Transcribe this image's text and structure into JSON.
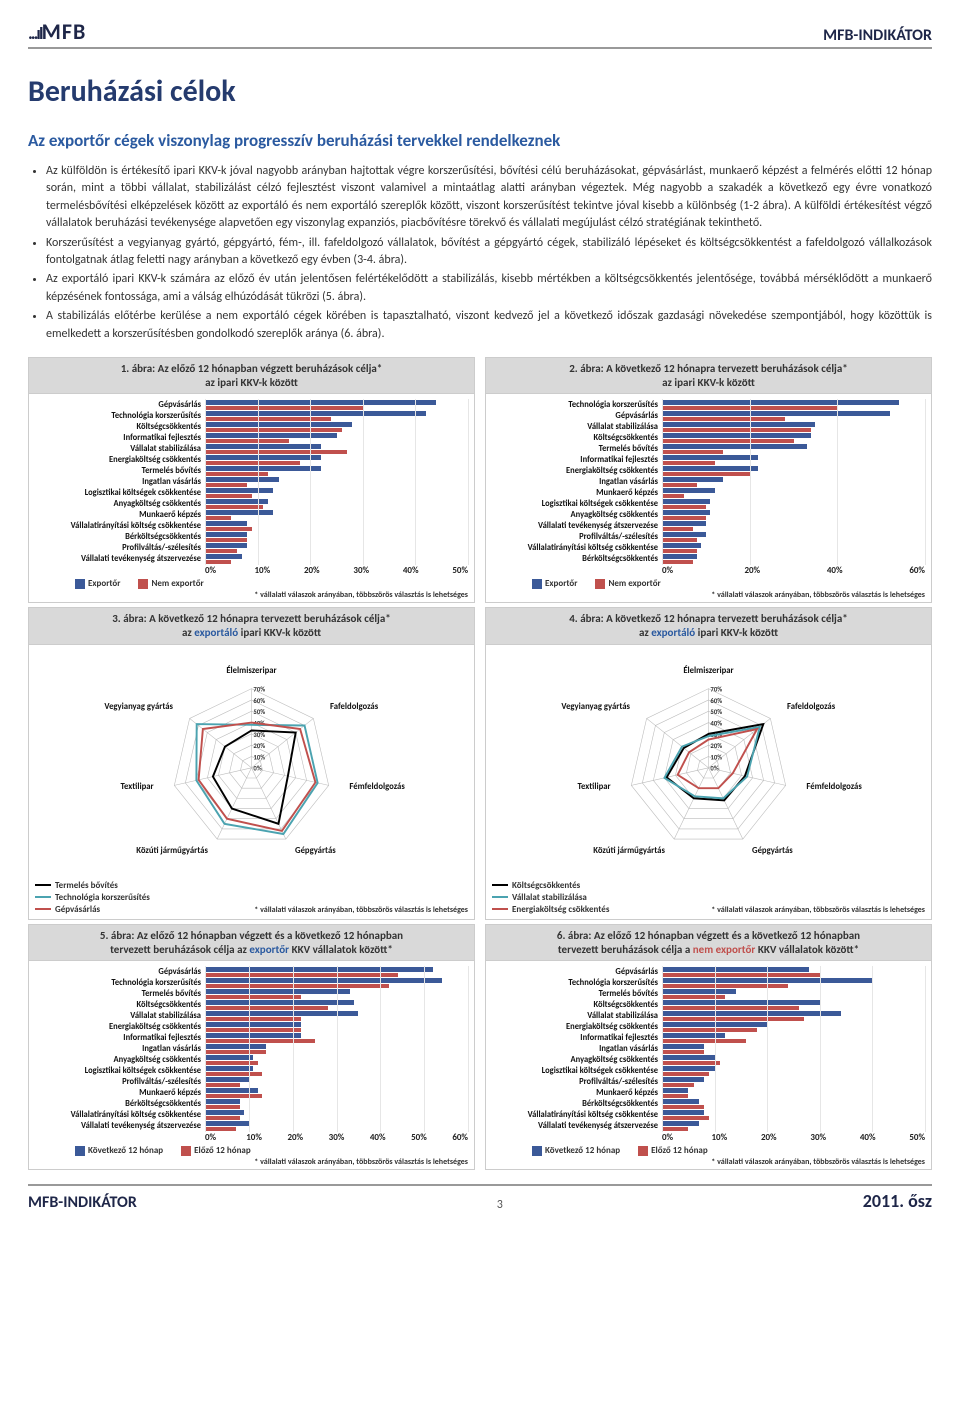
{
  "header": {
    "logo_prefix": "...ıI",
    "logo_text": "MFB",
    "right": "MFB-INDIKÁTOR"
  },
  "title": "Beruházási célok",
  "subtitle": "Az exportőr cégek viszonylag progresszív beruházási tervekkel rendelkeznek",
  "bullets": [
    "Az külföldön is értékesítő ipari KKV-k jóval nagyobb arányban hajtottak végre korszerűsítési, bővítési célú beruházásokat, gépvásárlást, munkaerő képzést a felmérés előtti 12 hónap során, mint a többi vállalat, stabilizálást célzó fejlesztést viszont valamivel a mintaátlag alatti arányban végeztek. Még nagyobb a szakadék a következő egy évre vonatkozó termelésbővítési elképzelések között az exportáló és nem exportáló szereplők között, viszont korszerűsítést tekintve jóval kisebb a különbség (1-2 ábra). A külföldi értékesítést végző vállalatok beruházási tevékenysége alapvetően egy viszonylag expanziós, piacbővítésre törekvő és vállalati megújulást célzó stratégiának tekinthető.",
    "Korszerűsítést a vegyianyag gyártó, gépgyártó, fém-, ill. fafeldolgozó vállalatok, bővítést a gépgyártó cégek, stabilizáló lépéseket és költségcsökkentést a fafeldolgozó vállalkozások fontolgatnak átlag feletti nagy arányban a következő egy évben (3-4. ábra).",
    "Az exportáló ipari KKV-k számára az előző év után jelentősen felértékelődött a stabilizálás, kisebb mértékben a költségcsökkentés jelentősége, továbbá mérséklődött a munkaerő képzésének fontossága, ami a válság elhúzódását tükrözi (5. ábra).",
    "A stabilizálás előtérbe kerülése a nem exportáló cégek körében is tapasztalható, viszont kedvező jel a következő időszak gazdasági növekedése szempontjából, hogy közöttük is emelkedett a korszerűsítésben gondolkodó szereplők aránya (6. ábra)."
  ],
  "legend_labels": {
    "exporter": "Exportőr",
    "non_exporter": "Nem exportőr",
    "next12": "Következő 12 hónap",
    "prev12": "Előző 12 hónap"
  },
  "footnote_text": "* vállalati válaszok arányában, többszörös választás is lehetséges",
  "colors": {
    "blue": "#3b5998",
    "red": "#c0504d",
    "black": "#000000",
    "teal": "#4ba3b0",
    "title_bg": "#d9d9d9"
  },
  "chart1": {
    "title": "1. ábra: Az előző 12 hónapban végzett beruházások célja*\naz ipari KKV-k között",
    "xmax": 50,
    "xtick_step": 10,
    "categories": [
      "Gépvásárlás",
      "Technológia korszerűsítés",
      "Költségcsökkentés",
      "Informatikai fejlesztés",
      "Vállalat stabilizálása",
      "Energiaköltség csökkentés",
      "Termelés bővítés",
      "Ingatlan vásárlás",
      "Logisztikai költségek csökkentése",
      "Anyagköltség csökkentés",
      "Munkaerő képzés",
      "Vállalatirányítási költség csökkentése",
      "Bérköltségcsökkentés",
      "Profilváltás/-szélesítés",
      "Vállalati tevékenység átszervezése"
    ],
    "series_a": [
      44,
      42,
      28,
      25,
      22,
      22,
      22,
      14,
      13,
      12,
      13,
      8,
      8,
      8,
      7
    ],
    "series_b": [
      30,
      24,
      26,
      16,
      27,
      18,
      12,
      8,
      9,
      11,
      5,
      9,
      8,
      6,
      5
    ]
  },
  "chart2": {
    "title": "2. ábra: A következő 12 hónapra tervezett beruházások célja*\naz ipari KKV-k között",
    "xmax": 60,
    "xtick_step": 20,
    "categories": [
      "Technológia korszerűsítés",
      "Gépvásárlás",
      "Vállalat stabilizálása",
      "Költségcsökkentés",
      "Termelés bővítés",
      "Informatikai fejlesztés",
      "Energiaköltség csökkentés",
      "Ingatlan vásárlás",
      "Munkaerő képzés",
      "Logisztikai költségek csökkentése",
      "Anyagköltség csökkentés",
      "Vállalati tevékenység átszervezése",
      "Profilváltás/-szélesítés",
      "Vállalatirányítási költség csökkentése",
      "Bérköltségcsökkentés"
    ],
    "series_a": [
      54,
      52,
      35,
      34,
      33,
      22,
      22,
      14,
      12,
      11,
      11,
      10,
      10,
      9,
      8
    ],
    "series_b": [
      40,
      28,
      34,
      30,
      14,
      12,
      20,
      8,
      5,
      10,
      10,
      7,
      8,
      8,
      7
    ]
  },
  "chart3": {
    "title": "3. ábra: A következő 12 hónapra tervezett beruházások célja*\naz <e>exportáló</e> ipari KKV-k között",
    "axes": [
      "Élelmiszeripar",
      "Fafeldolgozás",
      "Fémfeldolgozás",
      "Gépgyártás",
      "Közúti járműgyártás",
      "Textilipar",
      "Vegyianyag gyártás"
    ],
    "ring_labels": [
      "70%",
      "60%",
      "50%",
      "40%",
      "30%",
      "20%",
      "10%",
      "0%"
    ],
    "legend": [
      {
        "label": "Termelés bővítés",
        "color": "#000000",
        "values": [
          33,
          50,
          33,
          55,
          40,
          35,
          30
        ]
      },
      {
        "label": "Technológia korszerűsítés",
        "color": "#4ba3b0",
        "values": [
          38,
          60,
          60,
          65,
          55,
          50,
          62
        ]
      },
      {
        "label": "Gépvásárlás",
        "color": "#c0504d",
        "values": [
          40,
          55,
          58,
          62,
          50,
          48,
          55
        ]
      }
    ]
  },
  "chart4": {
    "title": "4. ábra: A következő 12 hónapra tervezett beruházások célja*\naz <e>exportáló</e> ipari KKV-k között",
    "axes": [
      "Élelmiszeripar",
      "Fafeldolgozás",
      "Fémfeldolgozás",
      "Gépgyártás",
      "Közúti járműgyártás",
      "Textilipar",
      "Vegyianyag gyártás"
    ],
    "ring_labels": [
      "70%",
      "60%",
      "50%",
      "40%",
      "30%",
      "20%",
      "10%",
      "0%"
    ],
    "legend": [
      {
        "label": "Költségcsökkentés",
        "color": "#000000",
        "values": [
          30,
          62,
          33,
          32,
          30,
          38,
          28
        ]
      },
      {
        "label": "Vállalat stabilizálása",
        "color": "#4ba3b0",
        "values": [
          28,
          58,
          35,
          30,
          28,
          40,
          30
        ]
      },
      {
        "label": "Energiaköltség csökkentés",
        "color": "#c0504d",
        "values": [
          25,
          55,
          22,
          20,
          20,
          28,
          22
        ]
      }
    ]
  },
  "chart5": {
    "title": "5. ábra: Az előző 12 hónapban végzett és a következő 12 hónapban\ntervezett beruházások célja az <e>exportőr</e> KKV vállalatok között*",
    "xmax": 60,
    "xtick_step": 10,
    "categories": [
      "Gépvásárlás",
      "Technológia korszerűsítés",
      "Termelés bővítés",
      "Költségcsökkentés",
      "Vállalat stabilizálása",
      "Energiaköltség csökkentés",
      "Informatikai fejlesztés",
      "Ingatlan vásárlás",
      "Anyagköltség csökkentés",
      "Logisztikai költségek csökkentése",
      "Profilváltás/-szélesítés",
      "Munkaerő képzés",
      "Bérköltségcsökkentés",
      "Vállalatirányítási költség csökkentése",
      "Vállalati tevékenység átszervezése"
    ],
    "series_a": [
      52,
      54,
      33,
      34,
      35,
      22,
      22,
      14,
      11,
      11,
      10,
      12,
      8,
      9,
      10
    ],
    "series_b": [
      44,
      42,
      22,
      28,
      22,
      22,
      25,
      14,
      12,
      13,
      8,
      13,
      8,
      8,
      7
    ]
  },
  "chart6": {
    "title": "6. ábra: Az előző 12 hónapban végzett és a következő 12 hónapban\ntervezett beruházások célja a <ne>nem exportőr</ne> KKV vállalatok között*",
    "xmax": 50,
    "xtick_step": 10,
    "categories": [
      "Gépvásárlás",
      "Technológia korszerűsítés",
      "Termelés bővítés",
      "Költségcsökkentés",
      "Vállalat stabilizálása",
      "Energiaköltség csökkentés",
      "Informatikai fejlesztés",
      "Ingatlan vásárlás",
      "Anyagköltség csökkentés",
      "Logisztikai költségek csökkentése",
      "Profilváltás/-szélesítés",
      "Munkaerő képzés",
      "Bérköltségcsökkentés",
      "Vállalatirányítási költség csökkentése",
      "Vállalati tevékenység átszervezése"
    ],
    "series_a": [
      28,
      40,
      14,
      30,
      34,
      20,
      12,
      8,
      10,
      10,
      8,
      5,
      7,
      8,
      7
    ],
    "series_b": [
      30,
      24,
      12,
      26,
      27,
      18,
      16,
      8,
      11,
      9,
      6,
      5,
      8,
      9,
      5
    ]
  },
  "footer": {
    "left": "MFB-INDIKÁTOR",
    "pagenum": "3",
    "right": "2011. ősz"
  }
}
